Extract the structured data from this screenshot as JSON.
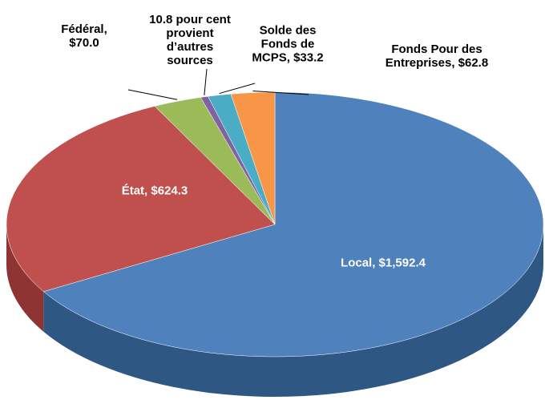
{
  "chart_data": {
    "type": "pie",
    "categories": [
      "Local, $1,592.4",
      "État, $624.3",
      "Fédéral, $70.0",
      "10.8 pour cent provient d’autres sources",
      "Solde des Fonds de MCPS, $33.2",
      "Fonds Pour des Entreprises, $62.8"
    ],
    "values": [
      1592.4,
      624.3,
      70.0,
      10.8,
      33.2,
      62.8
    ],
    "colors": [
      "#4f81bd",
      "#c0504d",
      "#9bbb59",
      "#8064a2",
      "#4bacc6",
      "#f79646"
    ],
    "side_colors": [
      "#2e5784",
      "#8e3432",
      "#6f8a3a",
      "#5a4577",
      "#2f8199",
      "#b86a2c"
    ]
  }
}
